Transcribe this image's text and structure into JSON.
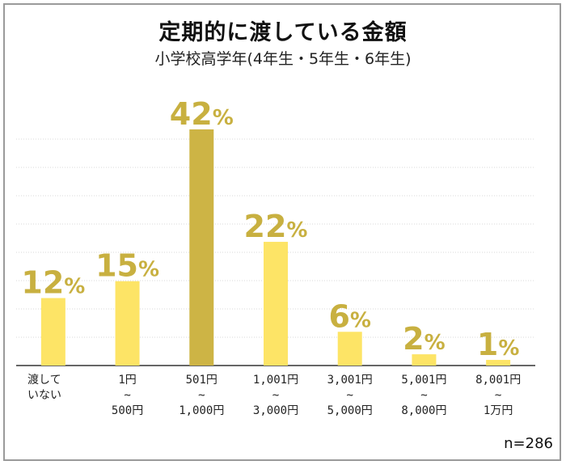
{
  "chart_data": {
    "type": "bar",
    "title": "定期的に渡している金額",
    "subtitle": "小学校高学年(4年生・5年生・6年生)",
    "note": "n=286",
    "unit": "%",
    "categories": [
      [
        "渡して",
        "いない"
      ],
      [
        "1円",
        "~",
        "500円"
      ],
      [
        "501円",
        "~",
        "1,000円"
      ],
      [
        "1,001円",
        "~",
        "3,000円"
      ],
      [
        "3,001円",
        "~",
        "5,000円"
      ],
      [
        "5,001円",
        "~",
        "8,000円"
      ],
      [
        "8,001円",
        "~",
        "1万円"
      ]
    ],
    "values": [
      12,
      15,
      42,
      22,
      6,
      2,
      1
    ],
    "value_labels": [
      "12",
      "15",
      "42",
      "22",
      "6",
      "2",
      "1"
    ],
    "highlight_index": 2,
    "ylim": [
      0,
      42
    ],
    "grid": true,
    "colors": {
      "bar": "#fde466",
      "bar_highlight": "#cdb445",
      "label": "#c8b040",
      "grid": "#d8d8d8",
      "axis": "#333333"
    }
  }
}
